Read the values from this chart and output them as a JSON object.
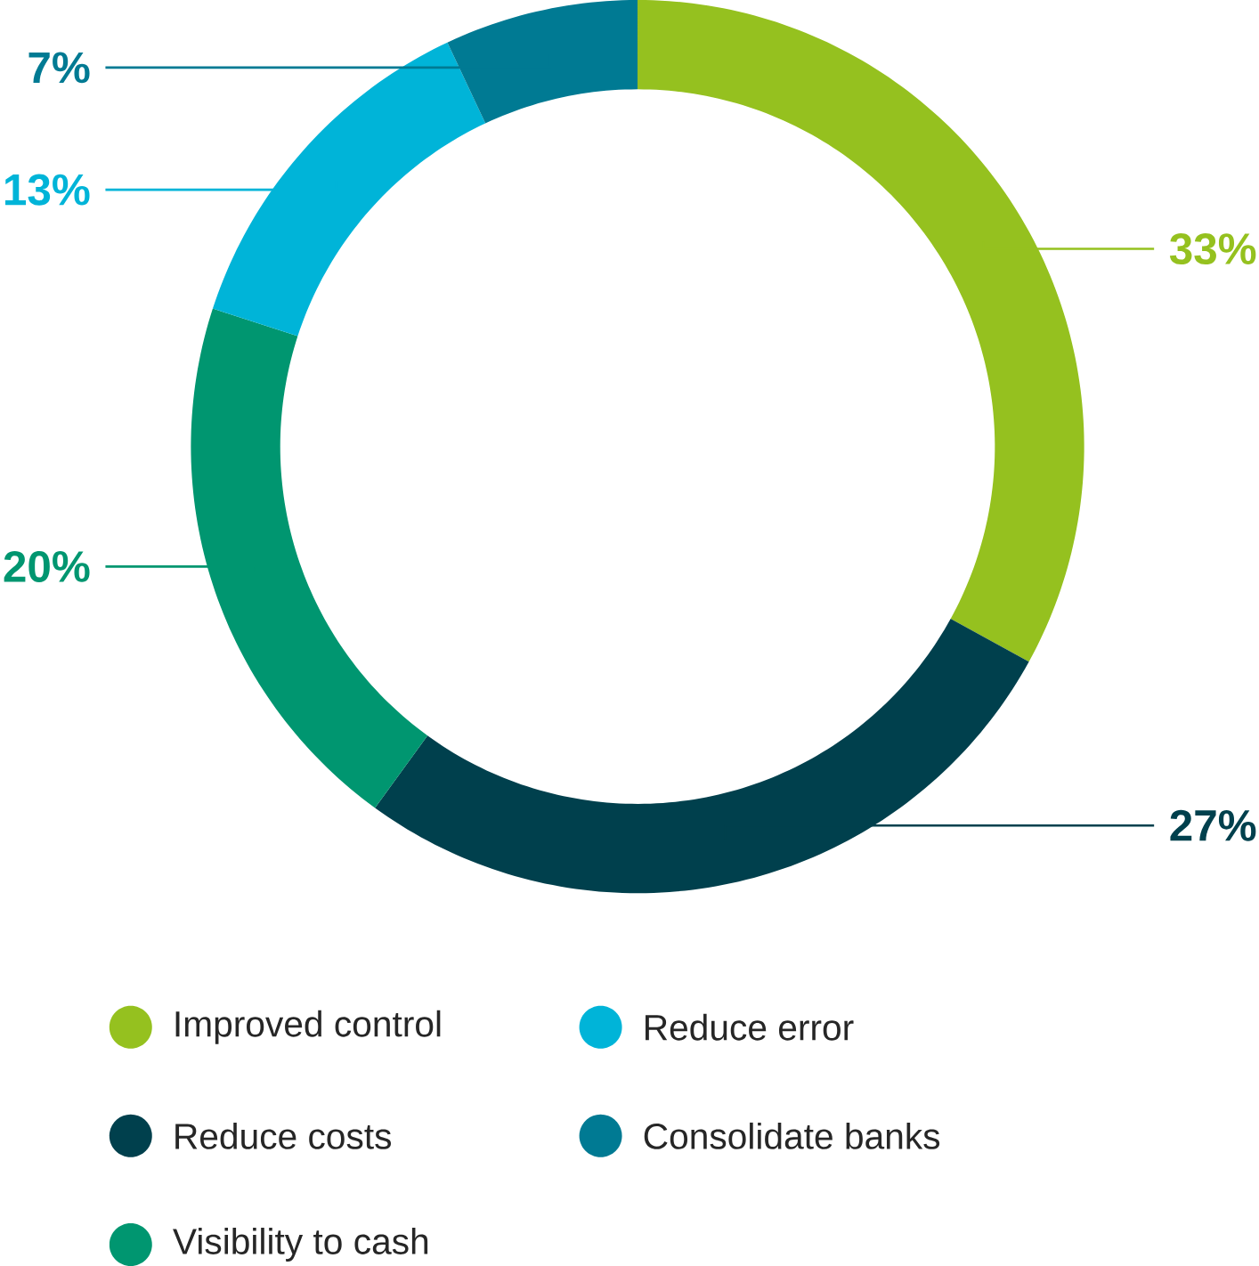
{
  "chart_data": {
    "type": "donut",
    "categories": [
      "Improved control",
      "Reduce costs",
      "Visibility to cash",
      "Reduce error",
      "Consolidate banks"
    ],
    "values": [
      33,
      27,
      20,
      13,
      7
    ],
    "colors": [
      "#95c11f",
      "#00404d",
      "#009670",
      "#00b4d8",
      "#007a93"
    ],
    "value_labels": [
      "33%",
      "27%",
      "20%",
      "13%",
      "7%"
    ],
    "legend": "bottom"
  }
}
